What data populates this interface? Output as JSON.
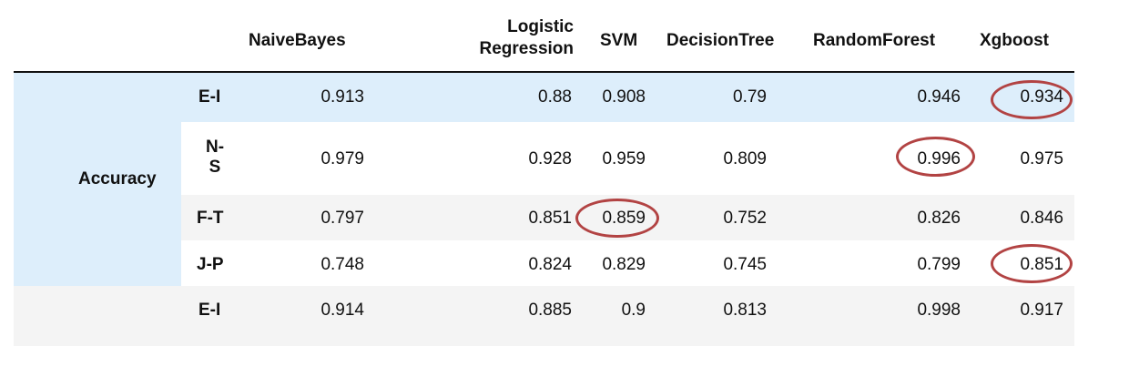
{
  "table": {
    "columns": {
      "naivebayes": "NaiveBayes",
      "logistic_line1": "Logistic",
      "logistic_line2": "Regression",
      "svm": "SVM",
      "decisiontree": "DecisionTree",
      "randomforest": "RandomForest",
      "xgboost": "Xgboost"
    },
    "group_label": "Accuracy",
    "rows": [
      {
        "label": "E-I",
        "values": [
          "0.913",
          "0.88",
          "0.908",
          "0.79",
          "0.946",
          "0.934"
        ]
      },
      {
        "label_line1": "N-",
        "label_line2": "S",
        "values": [
          "0.979",
          "0.928",
          "0.959",
          "0.809",
          "0.996",
          "0.975"
        ]
      },
      {
        "label": "F-T",
        "values": [
          "0.797",
          "0.851",
          "0.859",
          "0.752",
          "0.826",
          "0.846"
        ]
      },
      {
        "label": "J-P",
        "values": [
          "0.748",
          "0.824",
          "0.829",
          "0.745",
          "0.799",
          "0.851"
        ]
      },
      {
        "label": "E-I",
        "values": [
          "0.914",
          "0.885",
          "0.9",
          "0.813",
          "0.998",
          "0.917"
        ]
      }
    ],
    "highlight_color": "#b24343"
  }
}
